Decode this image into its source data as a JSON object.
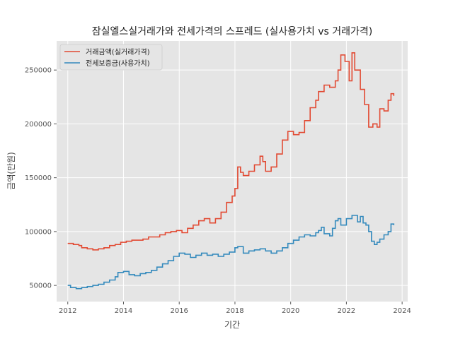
{
  "chart_data": {
    "type": "line",
    "title": "잠실엘스실거래가와 전세가격의 스프레드 (실사용가치 vs 거래가격)",
    "xlabel": "기간",
    "ylabel": "금액(만원)",
    "xlim": [
      2011.6,
      2024.2
    ],
    "ylim": [
      35000,
      277000
    ],
    "xticks": [
      2012,
      2014,
      2016,
      2018,
      2020,
      2022,
      2024
    ],
    "yticks": [
      50000,
      100000,
      150000,
      200000,
      250000
    ],
    "grid": true,
    "legend_position": "top-left",
    "step": true,
    "series": [
      {
        "name": "거래금액(실거래가격)",
        "color": "#e24a33",
        "points": [
          [
            2012.0,
            89000
          ],
          [
            2012.2,
            88000
          ],
          [
            2012.4,
            87000
          ],
          [
            2012.5,
            85000
          ],
          [
            2012.7,
            84000
          ],
          [
            2012.9,
            83000
          ],
          [
            2013.1,
            84000
          ],
          [
            2013.3,
            85000
          ],
          [
            2013.5,
            87000
          ],
          [
            2013.7,
            88000
          ],
          [
            2013.9,
            90000
          ],
          [
            2014.1,
            91000
          ],
          [
            2014.3,
            92000
          ],
          [
            2014.5,
            92000
          ],
          [
            2014.7,
            93000
          ],
          [
            2014.9,
            95000
          ],
          [
            2015.1,
            95000
          ],
          [
            2015.3,
            97000
          ],
          [
            2015.5,
            99000
          ],
          [
            2015.7,
            100000
          ],
          [
            2015.9,
            101000
          ],
          [
            2016.1,
            99000
          ],
          [
            2016.3,
            103000
          ],
          [
            2016.5,
            106000
          ],
          [
            2016.7,
            110000
          ],
          [
            2016.9,
            112000
          ],
          [
            2017.1,
            108000
          ],
          [
            2017.3,
            112000
          ],
          [
            2017.5,
            118000
          ],
          [
            2017.7,
            127000
          ],
          [
            2017.9,
            133000
          ],
          [
            2018.0,
            140000
          ],
          [
            2018.1,
            160000
          ],
          [
            2018.2,
            155000
          ],
          [
            2018.3,
            152000
          ],
          [
            2018.5,
            156000
          ],
          [
            2018.7,
            162000
          ],
          [
            2018.9,
            170000
          ],
          [
            2019.0,
            165000
          ],
          [
            2019.1,
            156000
          ],
          [
            2019.3,
            160000
          ],
          [
            2019.5,
            172000
          ],
          [
            2019.7,
            185000
          ],
          [
            2019.9,
            193000
          ],
          [
            2020.1,
            190000
          ],
          [
            2020.3,
            192000
          ],
          [
            2020.5,
            203000
          ],
          [
            2020.7,
            215000
          ],
          [
            2020.9,
            222000
          ],
          [
            2021.0,
            230000
          ],
          [
            2021.2,
            236000
          ],
          [
            2021.4,
            234000
          ],
          [
            2021.6,
            240000
          ],
          [
            2021.7,
            250000
          ],
          [
            2021.8,
            264000
          ],
          [
            2021.95,
            258000
          ],
          [
            2022.1,
            240000
          ],
          [
            2022.2,
            266000
          ],
          [
            2022.3,
            250000
          ],
          [
            2022.5,
            232000
          ],
          [
            2022.65,
            218000
          ],
          [
            2022.8,
            197000
          ],
          [
            2022.95,
            200000
          ],
          [
            2023.1,
            197000
          ],
          [
            2023.2,
            214000
          ],
          [
            2023.35,
            212000
          ],
          [
            2023.5,
            222000
          ],
          [
            2023.6,
            228000
          ],
          [
            2023.7,
            226000
          ]
        ]
      },
      {
        "name": "전세보증금(사용가치)",
        "color": "#348abd",
        "points": [
          [
            2012.0,
            50000
          ],
          [
            2012.1,
            48000
          ],
          [
            2012.3,
            47000
          ],
          [
            2012.5,
            48000
          ],
          [
            2012.7,
            49000
          ],
          [
            2012.9,
            50000
          ],
          [
            2013.1,
            51000
          ],
          [
            2013.3,
            53000
          ],
          [
            2013.5,
            55000
          ],
          [
            2013.7,
            58000
          ],
          [
            2013.8,
            62000
          ],
          [
            2014.0,
            63000
          ],
          [
            2014.2,
            60000
          ],
          [
            2014.4,
            59000
          ],
          [
            2014.6,
            61000
          ],
          [
            2014.8,
            62000
          ],
          [
            2015.0,
            64000
          ],
          [
            2015.2,
            67000
          ],
          [
            2015.4,
            70000
          ],
          [
            2015.6,
            73000
          ],
          [
            2015.8,
            77000
          ],
          [
            2016.0,
            80000
          ],
          [
            2016.2,
            79000
          ],
          [
            2016.4,
            76000
          ],
          [
            2016.6,
            78000
          ],
          [
            2016.8,
            80000
          ],
          [
            2017.0,
            78000
          ],
          [
            2017.2,
            79000
          ],
          [
            2017.4,
            77000
          ],
          [
            2017.6,
            79000
          ],
          [
            2017.8,
            81000
          ],
          [
            2018.0,
            85000
          ],
          [
            2018.1,
            86000
          ],
          [
            2018.3,
            80000
          ],
          [
            2018.5,
            82000
          ],
          [
            2018.7,
            83000
          ],
          [
            2018.9,
            84000
          ],
          [
            2019.1,
            82000
          ],
          [
            2019.3,
            80000
          ],
          [
            2019.5,
            82000
          ],
          [
            2019.7,
            85000
          ],
          [
            2019.9,
            89000
          ],
          [
            2020.1,
            92000
          ],
          [
            2020.3,
            95000
          ],
          [
            2020.5,
            97000
          ],
          [
            2020.7,
            96000
          ],
          [
            2020.9,
            99000
          ],
          [
            2021.0,
            101000
          ],
          [
            2021.1,
            104000
          ],
          [
            2021.2,
            98000
          ],
          [
            2021.4,
            96000
          ],
          [
            2021.5,
            103000
          ],
          [
            2021.6,
            110000
          ],
          [
            2021.7,
            112000
          ],
          [
            2021.8,
            106000
          ],
          [
            2022.0,
            112000
          ],
          [
            2022.2,
            115000
          ],
          [
            2022.4,
            109000
          ],
          [
            2022.5,
            114000
          ],
          [
            2022.6,
            108000
          ],
          [
            2022.7,
            106000
          ],
          [
            2022.8,
            100000
          ],
          [
            2022.9,
            91000
          ],
          [
            2023.0,
            88000
          ],
          [
            2023.1,
            90000
          ],
          [
            2023.2,
            93000
          ],
          [
            2023.35,
            97000
          ],
          [
            2023.5,
            100000
          ],
          [
            2023.6,
            107000
          ],
          [
            2023.7,
            106000
          ]
        ]
      }
    ]
  }
}
